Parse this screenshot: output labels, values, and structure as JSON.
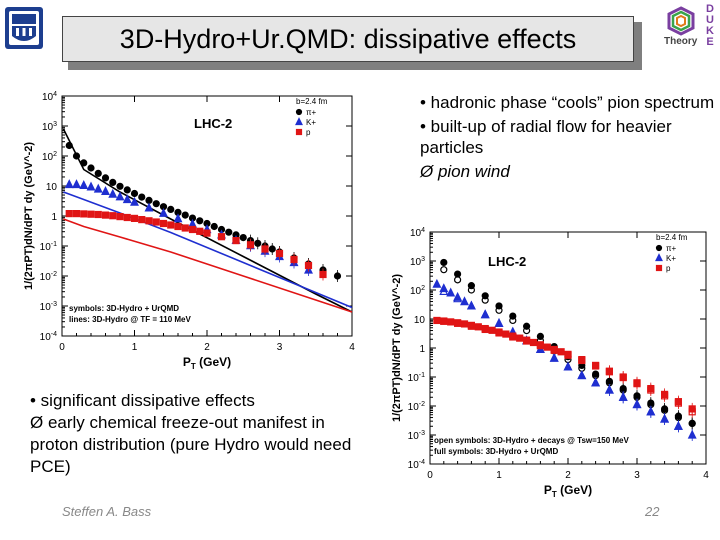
{
  "slide": {
    "title": "3D-Hydro+Ur.QMD: dissipative effects",
    "author": "Steffen A. Bass",
    "page_number": "22"
  },
  "logos": {
    "left": {
      "icon": "university-seal-icon"
    },
    "right": {
      "letters": [
        "D",
        "U",
        "K",
        "E"
      ],
      "label": "Theory"
    }
  },
  "bullets_right": [
    "• hadronic phase “cools” pion spectrum",
    "• built-up of radial flow  for heavier particles",
    "Ø  pion wind"
  ],
  "bullets_left": [
    "• significant dissipative effects",
    "Ø  early chemical freeze-out manifest in proton distribution (pure Hydro would need PCE)"
  ],
  "chart_data": [
    {
      "type": "scatter",
      "id": "plot-left",
      "title": "LHC-2",
      "xlabel": "P_T (GeV)",
      "ylabel": "1/(2πP_T)dN/dP_T dy (GeV^-2)",
      "xlim": [
        0,
        4
      ],
      "ylim_log10": [
        -4,
        4
      ],
      "xticks": [
        "0",
        "1",
        "2",
        "3",
        "4"
      ],
      "yticks": [
        "10^4",
        "10^3",
        "10^2",
        "10",
        "1",
        "10^-1",
        "10^-2",
        "10^-3",
        "10^-4"
      ],
      "legend": {
        "header": "b=2.4 fm",
        "entries": [
          "π+",
          "K+",
          "p"
        ]
      },
      "annotation": [
        "symbols: 3D-Hydro + UrQMD",
        "lines: 3D-Hydro @ T_F = 110 MeV"
      ],
      "series": [
        {
          "name": "π+",
          "color": "#000000",
          "marker": "circle",
          "x": [
            0.1,
            0.2,
            0.3,
            0.4,
            0.5,
            0.6,
            0.7,
            0.8,
            0.9,
            1.0,
            1.1,
            1.2,
            1.3,
            1.4,
            1.5,
            1.6,
            1.7,
            1.8,
            1.9,
            2.0,
            2.1,
            2.2,
            2.3,
            2.4,
            2.5,
            2.6,
            2.7,
            2.8,
            2.9,
            3.0,
            3.2,
            3.4,
            3.6,
            3.8
          ],
          "y": [
            2.35,
            2.0,
            1.77,
            1.6,
            1.42,
            1.27,
            1.12,
            0.99,
            0.87,
            0.75,
            0.63,
            0.52,
            0.41,
            0.31,
            0.22,
            0.12,
            0.03,
            -0.07,
            -0.16,
            -0.25,
            -0.35,
            -0.45,
            -0.54,
            -0.63,
            -0.72,
            -0.82,
            -0.91,
            -1.0,
            -1.1,
            -1.2,
            -1.4,
            -1.6,
            -1.8,
            -2.0
          ]
        },
        {
          "name": "K+",
          "color": "#1f2fd0",
          "marker": "triangle",
          "x": [
            0.1,
            0.2,
            0.3,
            0.4,
            0.5,
            0.6,
            0.7,
            0.8,
            0.9,
            1.0,
            1.2,
            1.4,
            1.6,
            1.8,
            2.0,
            2.2,
            2.4,
            2.6,
            2.8,
            3.0,
            3.2,
            3.4
          ],
          "y": [
            1.05,
            1.05,
            1.02,
            0.97,
            0.9,
            0.82,
            0.73,
            0.64,
            0.55,
            0.46,
            0.27,
            0.09,
            -0.09,
            -0.27,
            -0.45,
            -0.63,
            -0.81,
            -0.99,
            -1.17,
            -1.35,
            -1.55,
            -1.8
          ]
        },
        {
          "name": "p",
          "color": "#e01515",
          "marker": "square",
          "x": [
            0.1,
            0.2,
            0.3,
            0.4,
            0.5,
            0.6,
            0.7,
            0.8,
            0.9,
            1.0,
            1.1,
            1.2,
            1.3,
            1.4,
            1.5,
            1.6,
            1.7,
            1.8,
            1.9,
            2.0,
            2.2,
            2.4,
            2.6,
            2.8,
            3.0,
            3.2,
            3.4,
            3.6
          ],
          "y": [
            0.08,
            0.08,
            0.07,
            0.06,
            0.05,
            0.03,
            0.01,
            -0.02,
            -0.05,
            -0.08,
            -0.12,
            -0.16,
            -0.2,
            -0.25,
            -0.3,
            -0.35,
            -0.4,
            -0.45,
            -0.51,
            -0.57,
            -0.69,
            -0.82,
            -0.96,
            -1.1,
            -1.25,
            -1.45,
            -1.65,
            -1.95
          ]
        }
      ],
      "lines": [
        {
          "name": "π+ (hydro)",
          "color": "#000000",
          "x": [
            0.02,
            0.3,
            0.8,
            1.5,
            2.5,
            3.5,
            4.0
          ],
          "y": [
            2.9,
            1.55,
            0.8,
            -0.1,
            -1.35,
            -2.6,
            -3.2
          ]
        },
        {
          "name": "K+ (hydro)",
          "color": "#1f2fd0",
          "x": [
            0.02,
            0.3,
            0.8,
            1.5,
            2.5,
            3.5,
            4.0
          ],
          "y": [
            0.8,
            0.55,
            0.1,
            -0.55,
            -1.55,
            -2.55,
            -3.05
          ]
        },
        {
          "name": "p (hydro)",
          "color": "#e01515",
          "x": [
            0.02,
            0.3,
            0.8,
            1.5,
            2.5,
            3.5,
            4.0
          ],
          "y": [
            -0.1,
            -0.35,
            -0.7,
            -1.2,
            -2.0,
            -2.8,
            -3.2
          ]
        }
      ]
    },
    {
      "type": "scatter",
      "id": "plot-right",
      "title": "LHC-2",
      "xlabel": "P_T (GeV)",
      "ylabel": "1/(2πP_T)dN/dP_T dy (GeV^-2)",
      "xlim": [
        0,
        4
      ],
      "ylim_log10": [
        -4,
        4
      ],
      "xticks": [
        "0",
        "1",
        "2",
        "3",
        "4"
      ],
      "yticks": [
        "10^4",
        "10^3",
        "10^2",
        "10",
        "1",
        "10^-1",
        "10^-2",
        "10^-3",
        "10^-4"
      ],
      "legend": {
        "header": "b=2.4 fm",
        "entries": [
          "π+",
          "K+",
          "p"
        ]
      },
      "annotation": [
        "open symbols: 3D-Hydro + decays @ T_sw=150 MeV",
        "full symbols: 3D-Hydro + UrQMD"
      ],
      "series": [
        {
          "name": "π+ (full)",
          "color": "#000000",
          "marker": "circle",
          "filled": true,
          "x": [
            0.2,
            0.4,
            0.6,
            0.8,
            1.0,
            1.2,
            1.4,
            1.6,
            1.8,
            2.0,
            2.2,
            2.4,
            2.6,
            2.8,
            3.0,
            3.2,
            3.4,
            3.6,
            3.8
          ],
          "y": [
            2.95,
            2.55,
            2.15,
            1.8,
            1.45,
            1.1,
            0.75,
            0.4,
            0.05,
            -0.3,
            -0.6,
            -0.9,
            -1.15,
            -1.4,
            -1.65,
            -1.9,
            -2.1,
            -2.35,
            -2.6
          ]
        },
        {
          "name": "π+ (open)",
          "color": "#000000",
          "marker": "circle",
          "filled": false,
          "x": [
            0.2,
            0.4,
            0.6,
            0.8,
            1.0,
            1.2,
            1.4,
            1.6,
            1.8,
            2.0,
            2.2,
            2.4,
            2.6,
            2.8,
            3.0,
            3.2,
            3.4,
            3.6,
            3.8
          ],
          "y": [
            2.7,
            2.35,
            2.0,
            1.65,
            1.3,
            0.95,
            0.6,
            0.25,
            -0.1,
            -0.4,
            -0.7,
            -0.95,
            -1.2,
            -1.45,
            -1.7,
            -1.95,
            -2.15,
            -2.4,
            -2.6
          ]
        },
        {
          "name": "K+ (full)",
          "color": "#1f2fd0",
          "marker": "triangle",
          "filled": true,
          "x": [
            0.1,
            0.2,
            0.3,
            0.4,
            0.5,
            0.6,
            0.8,
            1.0,
            1.2,
            1.4,
            1.6,
            1.8,
            2.0,
            2.2,
            2.4,
            2.6,
            2.8,
            3.0,
            3.2,
            3.4,
            3.6,
            3.8
          ],
          "y": [
            2.2,
            2.05,
            1.9,
            1.75,
            1.6,
            1.45,
            1.15,
            0.85,
            0.55,
            0.25,
            -0.05,
            -0.35,
            -0.65,
            -0.95,
            -1.2,
            -1.45,
            -1.7,
            -1.95,
            -2.2,
            -2.45,
            -2.7,
            -3.0
          ]
        },
        {
          "name": "K+ (open)",
          "color": "#1f2fd0",
          "marker": "triangle",
          "filled": false,
          "x": [
            0.2,
            0.4,
            0.6,
            0.8,
            1.0,
            1.2,
            1.4,
            1.6,
            1.8,
            2.0,
            2.2,
            2.4,
            2.6,
            2.8,
            3.0,
            3.2,
            3.4,
            3.6
          ],
          "y": [
            1.95,
            1.7,
            1.45,
            1.15,
            0.85,
            0.55,
            0.25,
            -0.05,
            -0.35,
            -0.65,
            -0.95,
            -1.2,
            -1.45,
            -1.7,
            -1.95,
            -2.2,
            -2.45,
            -2.7
          ]
        },
        {
          "name": "p (full)",
          "color": "#e01515",
          "marker": "square",
          "filled": true,
          "x": [
            0.1,
            0.2,
            0.3,
            0.4,
            0.5,
            0.6,
            0.7,
            0.8,
            0.9,
            1.0,
            1.1,
            1.2,
            1.3,
            1.4,
            1.5,
            1.6,
            1.7,
            1.8,
            1.9,
            2.0,
            2.2,
            2.4,
            2.6,
            2.8,
            3.0,
            3.2,
            3.4,
            3.6,
            3.8
          ],
          "y": [
            0.95,
            0.93,
            0.9,
            0.87,
            0.83,
            0.78,
            0.73,
            0.67,
            0.61,
            0.55,
            0.48,
            0.41,
            0.34,
            0.27,
            0.19,
            0.11,
            0.03,
            -0.05,
            -0.13,
            -0.22,
            -0.4,
            -0.6,
            -0.8,
            -1.0,
            -1.2,
            -1.4,
            -1.6,
            -1.85,
            -2.1
          ]
        },
        {
          "name": "p (open)",
          "color": "#e01515",
          "marker": "square",
          "filled": false,
          "x": [
            0.2,
            0.4,
            0.6,
            0.8,
            1.0,
            1.2,
            1.4,
            1.6,
            1.8,
            2.0,
            2.2,
            2.4,
            2.6,
            2.8,
            3.0,
            3.2,
            3.4,
            3.6,
            3.8
          ],
          "y": [
            0.92,
            0.85,
            0.75,
            0.64,
            0.52,
            0.38,
            0.24,
            0.08,
            -0.08,
            -0.25,
            -0.43,
            -0.62,
            -0.82,
            -1.02,
            -1.23,
            -1.45,
            -1.65,
            -1.9,
            -2.2
          ]
        }
      ]
    }
  ]
}
